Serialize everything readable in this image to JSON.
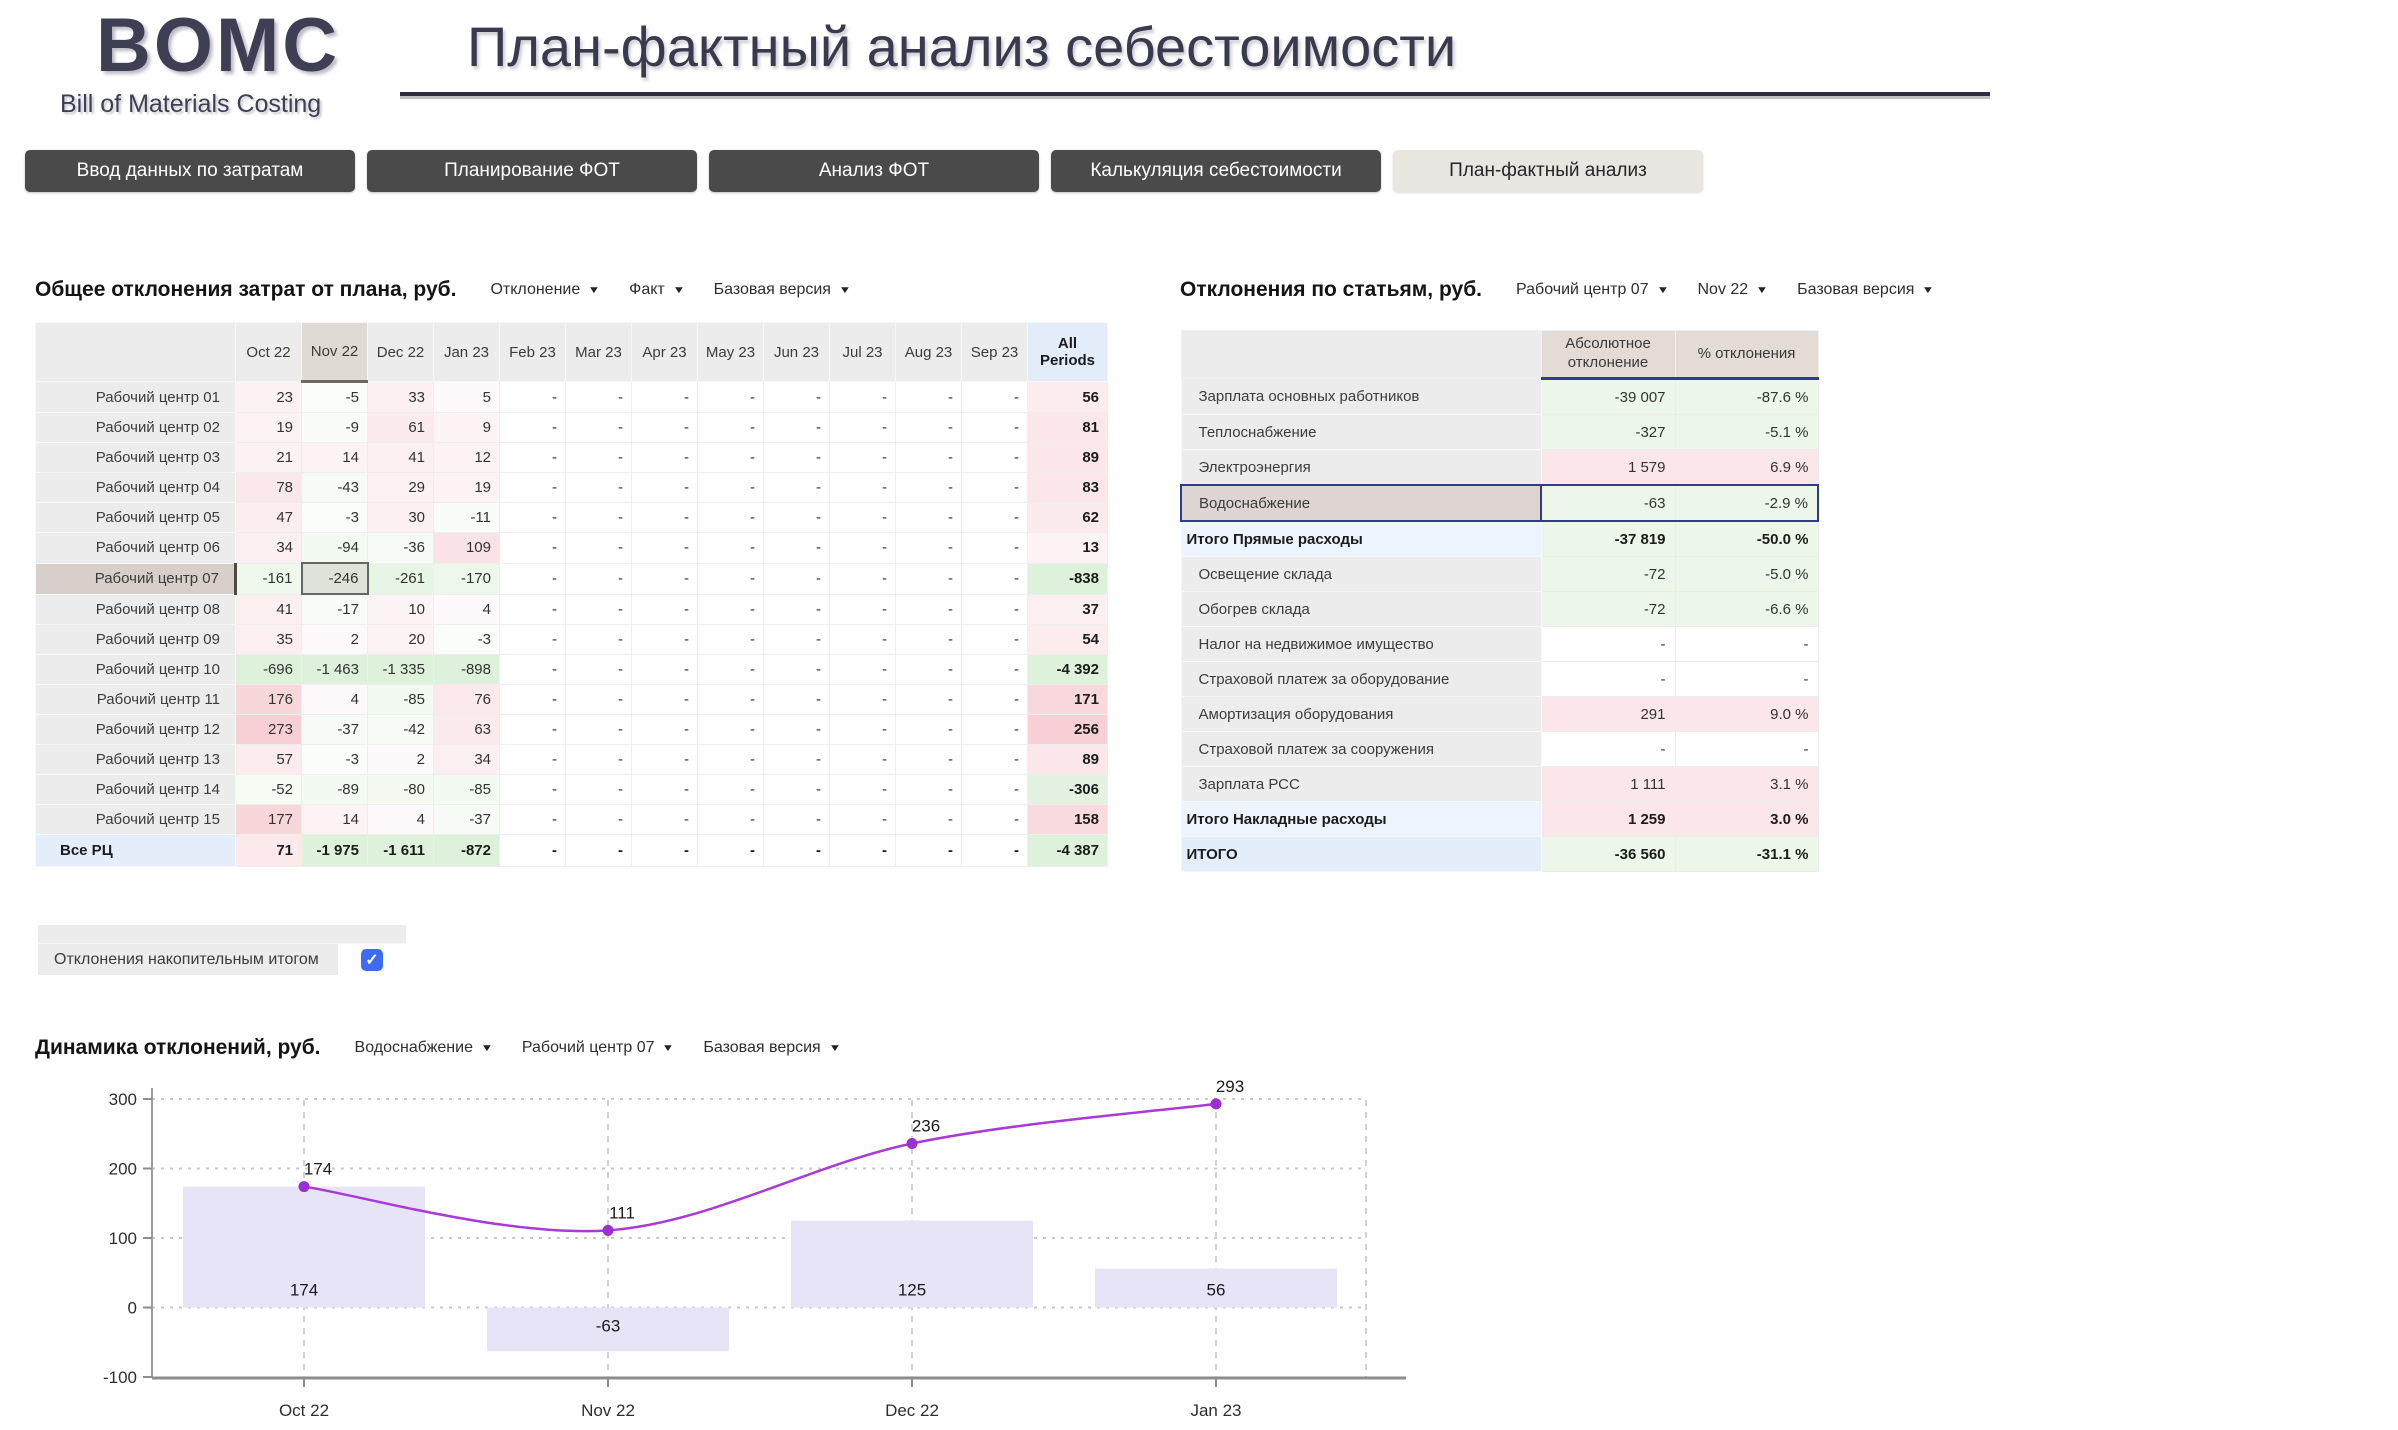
{
  "header": {
    "logo_title": "BOMC",
    "logo_subtitle": "Bill of Materials Costing",
    "page_title": "План-фактный анализ себестоимости"
  },
  "nav": {
    "items": [
      {
        "label": "Ввод данных по затратам",
        "active": false
      },
      {
        "label": "Планирование ФОТ",
        "active": false
      },
      {
        "label": "Анализ ФОТ",
        "active": false
      },
      {
        "label": "Калькуляция себестоимости",
        "active": false
      },
      {
        "label": "План-фактный анализ",
        "active": true
      }
    ]
  },
  "left_table": {
    "title": "Общее отклонения затрат от плана, руб.",
    "filters": [
      "Отклонение",
      "Факт",
      "Базовая версия"
    ],
    "columns": [
      "Oct 22",
      "Nov 22",
      "Dec 22",
      "Jan 23",
      "Feb 23",
      "Mar 23",
      "Apr 23",
      "May 23",
      "Jun 23",
      "Jul 23",
      "Aug 23",
      "Sep 23"
    ],
    "all_label": "All Periods",
    "selected_column": "Nov 22",
    "selected_row": "Рабочий центр 07",
    "rows": [
      {
        "label": "Рабочий центр 01",
        "values": [
          "23",
          "-5",
          "33",
          "5",
          "-",
          "-",
          "-",
          "-",
          "-",
          "-",
          "-",
          "-"
        ],
        "all": "56"
      },
      {
        "label": "Рабочий центр 02",
        "values": [
          "19",
          "-9",
          "61",
          "9",
          "-",
          "-",
          "-",
          "-",
          "-",
          "-",
          "-",
          "-"
        ],
        "all": "81"
      },
      {
        "label": "Рабочий центр 03",
        "values": [
          "21",
          "14",
          "41",
          "12",
          "-",
          "-",
          "-",
          "-",
          "-",
          "-",
          "-",
          "-"
        ],
        "all": "89"
      },
      {
        "label": "Рабочий центр 04",
        "values": [
          "78",
          "-43",
          "29",
          "19",
          "-",
          "-",
          "-",
          "-",
          "-",
          "-",
          "-",
          "-"
        ],
        "all": "83"
      },
      {
        "label": "Рабочий центр 05",
        "values": [
          "47",
          "-3",
          "30",
          "-11",
          "-",
          "-",
          "-",
          "-",
          "-",
          "-",
          "-",
          "-"
        ],
        "all": "62"
      },
      {
        "label": "Рабочий центр 06",
        "values": [
          "34",
          "-94",
          "-36",
          "109",
          "-",
          "-",
          "-",
          "-",
          "-",
          "-",
          "-",
          "-"
        ],
        "all": "13"
      },
      {
        "label": "Рабочий центр 07",
        "values": [
          "-161",
          "-246",
          "-261",
          "-170",
          "-",
          "-",
          "-",
          "-",
          "-",
          "-",
          "-",
          "-"
        ],
        "all": "-838"
      },
      {
        "label": "Рабочий центр 08",
        "values": [
          "41",
          "-17",
          "10",
          "4",
          "-",
          "-",
          "-",
          "-",
          "-",
          "-",
          "-",
          "-"
        ],
        "all": "37"
      },
      {
        "label": "Рабочий центр 09",
        "values": [
          "35",
          "2",
          "20",
          "-3",
          "-",
          "-",
          "-",
          "-",
          "-",
          "-",
          "-",
          "-"
        ],
        "all": "54"
      },
      {
        "label": "Рабочий центр 10",
        "values": [
          "-696",
          "-1 463",
          "-1 335",
          "-898",
          "-",
          "-",
          "-",
          "-",
          "-",
          "-",
          "-",
          "-"
        ],
        "all": "-4 392"
      },
      {
        "label": "Рабочий центр 11",
        "values": [
          "176",
          "4",
          "-85",
          "76",
          "-",
          "-",
          "-",
          "-",
          "-",
          "-",
          "-",
          "-"
        ],
        "all": "171"
      },
      {
        "label": "Рабочий центр 12",
        "values": [
          "273",
          "-37",
          "-42",
          "63",
          "-",
          "-",
          "-",
          "-",
          "-",
          "-",
          "-",
          "-"
        ],
        "all": "256"
      },
      {
        "label": "Рабочий центр 13",
        "values": [
          "57",
          "-3",
          "2",
          "34",
          "-",
          "-",
          "-",
          "-",
          "-",
          "-",
          "-",
          "-"
        ],
        "all": "89"
      },
      {
        "label": "Рабочий центр 14",
        "values": [
          "-52",
          "-89",
          "-80",
          "-85",
          "-",
          "-",
          "-",
          "-",
          "-",
          "-",
          "-",
          "-"
        ],
        "all": "-306"
      },
      {
        "label": "Рабочий центр 15",
        "values": [
          "177",
          "14",
          "4",
          "-37",
          "-",
          "-",
          "-",
          "-",
          "-",
          "-",
          "-",
          "-"
        ],
        "all": "158"
      }
    ],
    "total": {
      "label": "Все РЦ",
      "values": [
        "71",
        "-1 975",
        "-1 611",
        "-872",
        "-",
        "-",
        "-",
        "-",
        "-",
        "-",
        "-",
        "-"
      ],
      "all": "-4 387"
    }
  },
  "right_table": {
    "title": "Отклонения по статьям, руб.",
    "filters": [
      "Рабочий центр 07",
      "Nov 22",
      "Базовая версия"
    ],
    "columns": [
      "Абсолютное отклонение",
      "% отклонения"
    ],
    "rows": [
      {
        "label": "Зарплата основных работников",
        "abs": "-39 007",
        "pct": "-87.6 %"
      },
      {
        "label": "Теплоснабжение",
        "abs": "-327",
        "pct": "-5.1 %"
      },
      {
        "label": "Электроэнергия",
        "abs": "1 579",
        "pct": "6.9 %"
      },
      {
        "label": "Водоснабжение",
        "abs": "-63",
        "pct": "-2.9 %",
        "selected": true
      },
      {
        "label": "Итого Прямые расходы",
        "abs": "-37 819",
        "pct": "-50.0 %",
        "subtotal": true
      },
      {
        "label": "Освещение склада",
        "abs": "-72",
        "pct": "-5.0 %"
      },
      {
        "label": "Обогрев склада",
        "abs": "-72",
        "pct": "-6.6 %"
      },
      {
        "label": "Налог на недвижимое имущество",
        "abs": "-",
        "pct": "-"
      },
      {
        "label": "Страховой платеж за оборудование",
        "abs": "-",
        "pct": "-"
      },
      {
        "label": "Амортизация оборудования",
        "abs": "291",
        "pct": "9.0 %"
      },
      {
        "label": "Страховой платеж за сооружения",
        "abs": "-",
        "pct": "-"
      },
      {
        "label": "Зарплата РСС",
        "abs": "1 111",
        "pct": "3.1 %"
      },
      {
        "label": "Итого Накладные расходы",
        "abs": "1 259",
        "pct": "3.0 %",
        "subtotal": true
      },
      {
        "label": "ИТОГО",
        "abs": "-36 560",
        "pct": "-31.1 %",
        "grand": true
      }
    ]
  },
  "cumulative_toggle": {
    "label": "Отклонения накопительным итогом",
    "checked": true
  },
  "chart_data": {
    "type": "combo-bar-line",
    "title": "Динамика отклонений, руб.",
    "filters": [
      "Водоснабжение",
      "Рабочий центр 07",
      "Базовая версия"
    ],
    "categories": [
      "Oct 22",
      "Nov 22",
      "Dec 22",
      "Jan 23"
    ],
    "series": [
      {
        "name": "Отклонение",
        "type": "bar",
        "values": [
          174,
          -63,
          125,
          56
        ]
      },
      {
        "name": "Отклонение накопительным итогом",
        "type": "line",
        "values": [
          174,
          111,
          236,
          293
        ]
      }
    ],
    "ylim": [
      -100,
      300
    ],
    "yticks": [
      -100,
      0,
      100,
      200,
      300
    ],
    "grid": true,
    "legend": "none"
  },
  "colors": {
    "positive_tint": "#de4054",
    "negative_tint": "#6abe56",
    "selection_border": "#2e3c90",
    "bar": "#e8e4f8",
    "line": "#a83bd6",
    "dot": "#9b2fd0",
    "checkbox": "#3d6cf2",
    "nav_dark": "#4a4a4a",
    "nav_active_bg": "#e9e6e2",
    "header_tan": "#e2dbd6",
    "all_periods_blue": "#e3edf9",
    "selected_tan": "#d6cfca"
  }
}
